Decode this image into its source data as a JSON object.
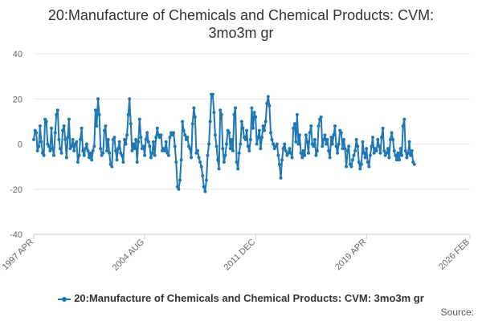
{
  "header": {
    "title_line1": "20:Manufacture of Chemicals and Chemical Products: CVM:",
    "title_line2": "3mo3m gr"
  },
  "legend": {
    "label": "20:Manufacture of Chemicals and Chemical Products: CVM: 3mo3m gr"
  },
  "footer": {
    "source_label": "Source:"
  },
  "colors": {
    "series": "#1f77b4",
    "grid": "#e6e6e6",
    "axis_text": "#666666"
  },
  "chart_data": {
    "type": "line",
    "title": "20:Manufacture of Chemicals and Chemical Products: CVM: 3mo3m gr",
    "xlabel": "",
    "ylabel": "",
    "ylim": [
      -40,
      40
    ],
    "yticks": [
      -40,
      -20,
      0,
      20,
      40
    ],
    "xlim": [
      1997.25,
      2026.08
    ],
    "xticks": [
      {
        "label": "1997 APR",
        "value": 1997.25
      },
      {
        "label": "2004 AUG",
        "value": 2004.58
      },
      {
        "label": "2011 DEC",
        "value": 2011.92
      },
      {
        "label": "2019 APR",
        "value": 2019.25
      },
      {
        "label": "2026 FEB",
        "value": 2026.08
      }
    ],
    "grid": true,
    "legend_position": "bottom",
    "series": [
      {
        "name": "20:Manufacture of Chemicals and Chemical Products: CVM: 3mo3m gr",
        "start": 1997.25,
        "step": 0.0833,
        "values": [
          2,
          6,
          5,
          -3,
          -1,
          8,
          1,
          -4,
          -5,
          11,
          10,
          0,
          -1,
          -3,
          7,
          -2,
          -5,
          5,
          13,
          15,
          2,
          -2,
          -4,
          6,
          8,
          2,
          -6,
          3,
          11,
          -2,
          -1,
          2,
          -3,
          0,
          1,
          -8,
          -5,
          2,
          7,
          -3,
          -5,
          -2,
          0,
          -3,
          -6,
          -4,
          -7,
          -3,
          -1,
          15,
          8,
          20,
          13,
          -2,
          -5,
          -4,
          6,
          8,
          -3,
          2,
          -4,
          -9,
          -10,
          2,
          3,
          -3,
          -7,
          -2,
          1,
          -4,
          -5,
          -8,
          2,
          0,
          4,
          13,
          20,
          9,
          -3,
          0,
          -2,
          2,
          -8,
          1,
          11,
          3,
          -2,
          -1,
          -5,
          2,
          5,
          1,
          -1,
          -6,
          -4,
          1,
          -5,
          3,
          7,
          4,
          3,
          4,
          -3,
          -2,
          -3,
          1,
          -4,
          -5,
          3,
          5,
          4,
          5,
          -1,
          -8,
          -19,
          -20,
          -16,
          -7,
          10,
          6,
          4,
          2,
          3,
          -1,
          -2,
          -6,
          9,
          16,
          12,
          -4,
          -3,
          -6,
          -8,
          -10,
          -14,
          -19,
          -21,
          -16,
          -5,
          0,
          10,
          22,
          22,
          14,
          4,
          -1,
          -7,
          -11,
          15,
          13,
          -2,
          -8,
          -5,
          0,
          6,
          5,
          -2,
          2,
          -3,
          13,
          16,
          -8,
          -11,
          -4,
          0,
          10,
          7,
          3,
          2,
          6,
          -1,
          -3,
          2,
          16,
          7,
          14,
          12,
          0,
          3,
          6,
          -2,
          3,
          8,
          6,
          10,
          18,
          21,
          17,
          5,
          2,
          0,
          -2,
          -1,
          0,
          -5,
          -9,
          -15,
          -7,
          -2,
          0,
          -3,
          -5,
          -4,
          -2,
          -4,
          -6,
          7,
          9,
          1,
          13,
          0,
          4,
          -4,
          -6,
          -3,
          -5,
          4,
          1,
          -4,
          5,
          8,
          0,
          -1,
          2,
          -5,
          -3,
          8,
          11,
          12,
          -1,
          2,
          4,
          0,
          2,
          -3,
          -6,
          3,
          0,
          4,
          8,
          -1,
          -4,
          0,
          6,
          5,
          -2,
          2,
          -2,
          -10,
          -3,
          -1,
          -9,
          -10,
          -7,
          -5,
          -3,
          2,
          -1,
          -8,
          -11,
          -9,
          1,
          -4,
          -6,
          -2,
          -8,
          -10,
          -5,
          -1,
          3,
          -4,
          -2,
          -3,
          2,
          -1,
          -4,
          3,
          7,
          -3,
          -5,
          -4,
          -2,
          -6,
          2,
          5,
          2,
          -3,
          -5,
          -7,
          -4,
          -7,
          -2,
          -5,
          8,
          11,
          -3,
          -6,
          -4,
          1,
          -5,
          -3,
          -8,
          -9
        ]
      }
    ]
  }
}
